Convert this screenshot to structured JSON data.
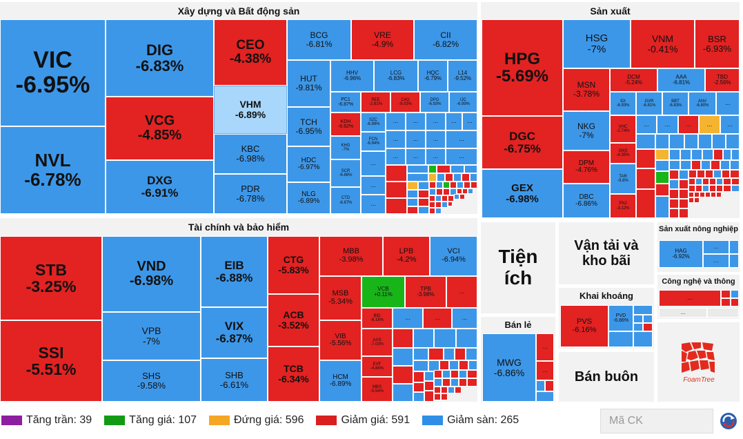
{
  "chart_data": {
    "type": "treemap",
    "sectors": [
      {
        "name": "Xây dựng và Bất động sản",
        "stocks": [
          {
            "s": "VIC",
            "c": "-6.95%"
          },
          {
            "s": "NVL",
            "c": "-6.78%"
          },
          {
            "s": "DIG",
            "c": "-6.83%"
          },
          {
            "s": "VCG",
            "c": "-4.85%"
          },
          {
            "s": "DXG",
            "c": "-6.91%"
          },
          {
            "s": "CEO",
            "c": "-4.38%"
          },
          {
            "s": "VHM",
            "c": "-6.89%"
          },
          {
            "s": "KBC",
            "c": "-6.98%"
          },
          {
            "s": "PDR",
            "c": "-6.78%"
          },
          {
            "s": "BCG",
            "c": "-6.81%"
          },
          {
            "s": "VRE",
            "c": "-4.9%"
          },
          {
            "s": "CII",
            "c": "-6.82%"
          },
          {
            "s": "HUT",
            "c": "-9.81%"
          },
          {
            "s": "HHV",
            "c": "-6.96%"
          },
          {
            "s": "LCG",
            "c": "-6.83%"
          },
          {
            "s": "HQC",
            "c": "-6.79%"
          },
          {
            "s": "L14",
            "c": "-9.52%"
          },
          {
            "s": "TCH",
            "c": "-6.95%"
          },
          {
            "s": "PC1",
            "c": "-6.87%"
          },
          {
            "s": "REE",
            "c": "-2.81%"
          },
          {
            "s": "C4G",
            "c": "-9.03%"
          },
          {
            "s": "DPG",
            "c": "-6.93%"
          },
          {
            "s": "IJC",
            "c": "-6.99%"
          },
          {
            "s": "KDH",
            "c": "-6.62%"
          },
          {
            "s": "SZC",
            "c": "-6.99%"
          },
          {
            "s": "HDC",
            "c": "-6.97%"
          },
          {
            "s": "KHG",
            "c": "-7%"
          },
          {
            "s": "FCN",
            "c": "-6.94%"
          },
          {
            "s": "SCR",
            "c": "-6.86%"
          },
          {
            "s": "NLG",
            "c": "-6.89%"
          },
          {
            "s": "CTD",
            "c": "-6.87%"
          }
        ]
      },
      {
        "name": "Sản xuất",
        "stocks": [
          {
            "s": "HPG",
            "c": "-5.69%"
          },
          {
            "s": "DGC",
            "c": "-6.75%"
          },
          {
            "s": "GEX",
            "c": "-6.98%"
          },
          {
            "s": "HSG",
            "c": "-7%"
          },
          {
            "s": "VNM",
            "c": "-0.41%"
          },
          {
            "s": "BSR",
            "c": "-6.93%"
          },
          {
            "s": "MSN",
            "c": "-3.78%"
          },
          {
            "s": "DCM",
            "c": "-5.24%"
          },
          {
            "s": "AAA",
            "c": "-6.81%"
          },
          {
            "s": "TBD",
            "c": "-2.56%"
          },
          {
            "s": "IDI",
            "c": "-6.93%"
          },
          {
            "s": "GVR",
            "c": "-6.81%"
          },
          {
            "s": "BBT",
            "c": "-6.83%"
          },
          {
            "s": "ANV",
            "c": "-6.80%"
          },
          {
            "s": "NKG",
            "c": "-7%"
          },
          {
            "s": "VHC",
            "c": "-2.74%"
          },
          {
            "s": "GNS",
            "c": "-4.35%"
          },
          {
            "s": "DPM",
            "c": "-4.76%"
          },
          {
            "s": "TAR",
            "c": "-9.8%"
          },
          {
            "s": "DBC",
            "c": "-6.86%"
          },
          {
            "s": "PNJ",
            "c": "-3.12%"
          }
        ]
      },
      {
        "name": "Tài chính và bảo hiểm",
        "stocks": [
          {
            "s": "STB",
            "c": "-3.25%"
          },
          {
            "s": "SSI",
            "c": "-5.51%"
          },
          {
            "s": "VND",
            "c": "-6.98%"
          },
          {
            "s": "VPB",
            "c": "-7%"
          },
          {
            "s": "SHS",
            "c": "-9.58%"
          },
          {
            "s": "EIB",
            "c": "-6.88%"
          },
          {
            "s": "VIX",
            "c": "-6.87%"
          },
          {
            "s": "SHB",
            "c": "-6.61%"
          },
          {
            "s": "CTG",
            "c": "-5.83%"
          },
          {
            "s": "ACB",
            "c": "-3.52%"
          },
          {
            "s": "TCB",
            "c": "-6.34%"
          },
          {
            "s": "MBB",
            "c": "-3.98%"
          },
          {
            "s": "LPB",
            "c": "-4.2%"
          },
          {
            "s": "VCI",
            "c": "-6.94%"
          },
          {
            "s": "MSB",
            "c": "-5.34%"
          },
          {
            "s": "VCB",
            "c": "+0.11%"
          },
          {
            "s": "TPB",
            "c": "-3.98%"
          },
          {
            "s": "VIB",
            "c": "-5.56%"
          },
          {
            "s": "BID",
            "c": "-6.16%"
          },
          {
            "s": "AAS",
            "c": "-7.03%"
          },
          {
            "s": "EVF",
            "c": "-4.84%"
          },
          {
            "s": "HCM",
            "c": "-6.89%"
          },
          {
            "s": "MBS",
            "c": "-5.54%"
          }
        ]
      },
      {
        "name": "Tiện ích",
        "stocks": []
      },
      {
        "name": "Vận tải và kho bãi",
        "stocks": []
      },
      {
        "name": "Sản xuất nông nghiệp",
        "stocks": [
          {
            "s": "HAG",
            "c": "-6.92%"
          }
        ]
      },
      {
        "name": "Công nghệ và thông tin",
        "stocks": []
      },
      {
        "name": "Khai khoáng",
        "stocks": [
          {
            "s": "PVS",
            "c": "-6.16%"
          },
          {
            "s": "PVD",
            "c": "-6.86%"
          }
        ]
      },
      {
        "name": "Bán lẻ",
        "stocks": [
          {
            "s": "MWG",
            "c": "-6.86%"
          }
        ]
      },
      {
        "name": "Bán buôn",
        "stocks": []
      }
    ]
  },
  "more": "...",
  "legend": [
    {
      "label": "Tăng trần: 39",
      "color": "#8e1ea0"
    },
    {
      "label": "Tăng giá: 107",
      "color": "#129b12"
    },
    {
      "label": "Đứng giá: 596",
      "color": "#f5a623"
    },
    {
      "label": "Giảm giá: 591",
      "color": "#d91f1f"
    },
    {
      "label": "Giảm sàn: 265",
      "color": "#2f8fe6"
    }
  ],
  "search": {
    "placeholder": "Mã CK"
  },
  "logo": {
    "text": "FoamTree"
  }
}
